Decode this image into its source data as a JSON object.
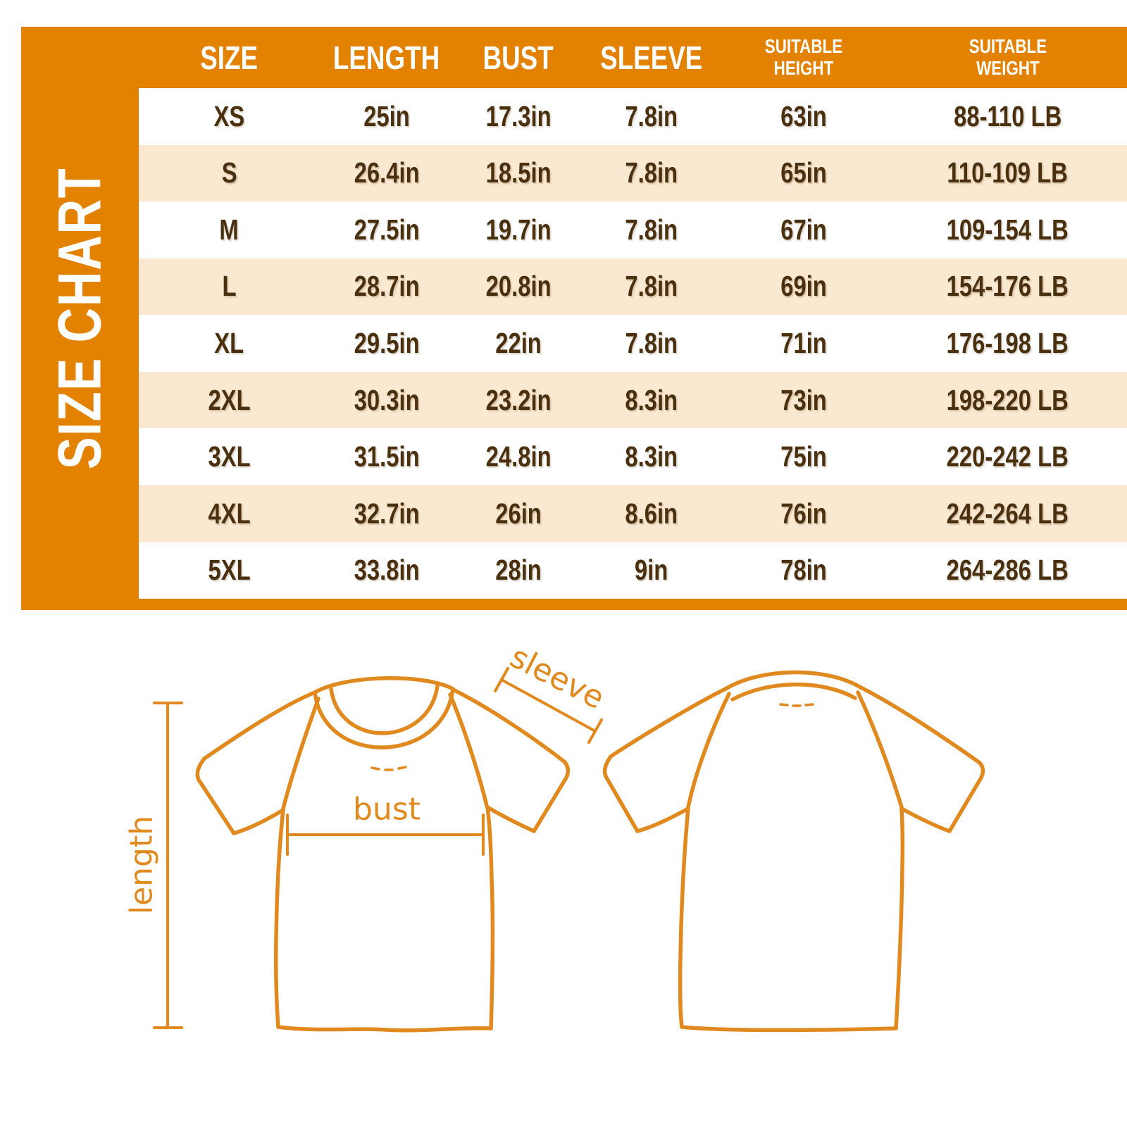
{
  "title": "SIZE CHART",
  "colors": {
    "orange": "#E28200",
    "peach": "#FAE8D1",
    "brown": "#4A300F",
    "outline": "#E0891F"
  },
  "table": {
    "columns": [
      "SIZE",
      "LENGTH",
      "BUST",
      "SLEEVE",
      "SUITABLE\nHEIGHT",
      "SUITABLE\nWEIGHT"
    ],
    "rows": [
      [
        "XS",
        "25in",
        "17.3in",
        "7.8in",
        "63in",
        "88-110 LB"
      ],
      [
        "S",
        "26.4in",
        "18.5in",
        "7.8in",
        "65in",
        "110-109 LB"
      ],
      [
        "M",
        "27.5in",
        "19.7in",
        "7.8in",
        "67in",
        "109-154 LB"
      ],
      [
        "L",
        "28.7in",
        "20.8in",
        "7.8in",
        "69in",
        "154-176 LB"
      ],
      [
        "XL",
        "29.5in",
        "22in",
        "7.8in",
        "71in",
        "176-198 LB"
      ],
      [
        "2XL",
        "30.3in",
        "23.2in",
        "8.3in",
        "73in",
        "198-220 LB"
      ],
      [
        "3XL",
        "31.5in",
        "24.8in",
        "8.3in",
        "75in",
        "220-242 LB"
      ],
      [
        "4XL",
        "32.7in",
        "26in",
        "8.6in",
        "76in",
        "242-264 LB"
      ],
      [
        "5XL",
        "33.8in",
        "28in",
        "9in",
        "78in",
        "264-286 LB"
      ]
    ]
  },
  "diagram": {
    "labels": {
      "length": "length",
      "bust": "bust",
      "sleeve": "sleeve"
    }
  }
}
